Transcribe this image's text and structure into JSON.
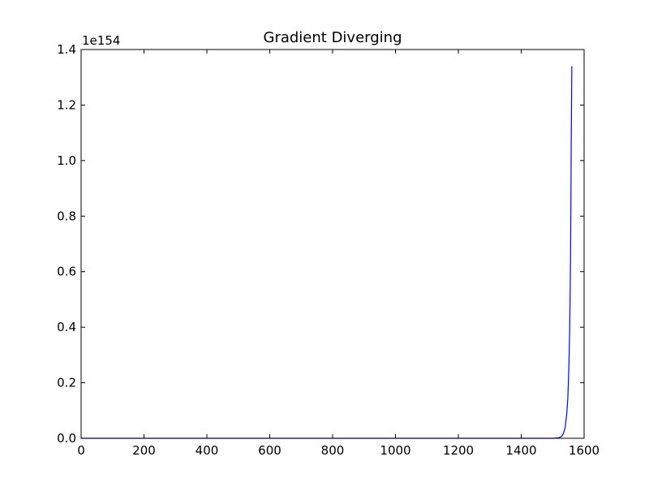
{
  "chart_data": {
    "type": "line",
    "title": "Gradient Diverging",
    "xlabel": "",
    "ylabel": "",
    "xlim": [
      0,
      1600
    ],
    "ylim": [
      0,
      1.4
    ],
    "y_offset_label": "1e154",
    "x_ticks": [
      0,
      200,
      400,
      600,
      800,
      1000,
      1200,
      1400,
      1600
    ],
    "x_tick_labels": [
      "0",
      "200",
      "400",
      "600",
      "800",
      "1000",
      "1200",
      "1400",
      "1600"
    ],
    "y_ticks": [
      0.0,
      0.2,
      0.4,
      0.6,
      0.8,
      1.0,
      1.2,
      1.4
    ],
    "y_tick_labels": [
      "0.0",
      "0.2",
      "0.4",
      "0.6",
      "0.8",
      "1.0",
      "1.2",
      "1.4"
    ],
    "grid": false,
    "series": [
      {
        "color": "#0000ff",
        "x": [
          0,
          200,
          400,
          600,
          800,
          1000,
          1200,
          1400,
          1500,
          1520,
          1530,
          1535,
          1540,
          1545,
          1548,
          1550,
          1552,
          1554,
          1556,
          1557,
          1558,
          1559,
          1560,
          1561
        ],
        "y": [
          0,
          0,
          0,
          0,
          0,
          0,
          0,
          0,
          0.0,
          0.002,
          0.008,
          0.02,
          0.04,
          0.09,
          0.14,
          0.2,
          0.28,
          0.38,
          0.55,
          0.68,
          0.85,
          1.05,
          1.2,
          1.34
        ]
      }
    ]
  }
}
